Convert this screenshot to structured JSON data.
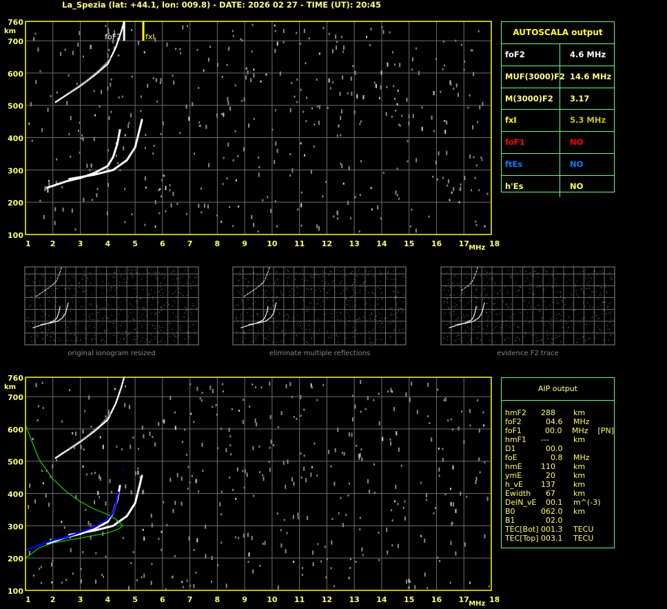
{
  "title": "La_Spezia (lat: +44.1, lon: 009.8) - DATE: 2026 02 27 - TIME (UT): 20:45",
  "colors": {
    "axis": "#ffff00",
    "label": "#ffff66",
    "grid": "#6e6e6e",
    "trace": "#ffffff",
    "noise": "#8a8a8a",
    "profile": "#00dd00",
    "aip_trace": "#0000ff",
    "table_border": "#66ff88"
  },
  "chart_data": [
    {
      "type": "scatter",
      "panel": "autoscala ionogram",
      "xlabel": "MHz",
      "ylabel": "km",
      "xlim": [
        1,
        18
      ],
      "ylim": [
        100,
        760
      ],
      "xticks": [
        1,
        2,
        3,
        4,
        5,
        6,
        7,
        8,
        9,
        10,
        11,
        12,
        13,
        14,
        15,
        16,
        17,
        18
      ],
      "yticks": [
        100,
        200,
        300,
        400,
        500,
        600,
        700,
        760
      ],
      "grid": true,
      "markers": [
        {
          "label": "foF2",
          "x": 4.6,
          "color": "#ffffff"
        },
        {
          "label": "fxI",
          "x": 5.3,
          "color": "#ffff00"
        }
      ],
      "traces": {
        "o_trace": [
          [
            1.8,
            245
          ],
          [
            2.5,
            265
          ],
          [
            3,
            275
          ],
          [
            3.5,
            290
          ],
          [
            4,
            312
          ],
          [
            4.2,
            340
          ],
          [
            4.35,
            380
          ],
          [
            4.45,
            425
          ]
        ],
        "x_trace": [
          [
            2.6,
            272
          ],
          [
            3.5,
            285
          ],
          [
            4.2,
            300
          ],
          [
            4.7,
            330
          ],
          [
            5,
            370
          ],
          [
            5.15,
            420
          ],
          [
            5.25,
            455
          ]
        ],
        "second_hop": [
          [
            2.1,
            510
          ],
          [
            3,
            560
          ],
          [
            3.5,
            592
          ],
          [
            4,
            628
          ],
          [
            4.3,
            680
          ],
          [
            4.5,
            730
          ],
          [
            4.6,
            760
          ]
        ],
        "second_hop_faint": [
          [
            2.6,
            540
          ],
          [
            3.2,
            575
          ],
          [
            3.7,
            610
          ],
          [
            4.1,
            645
          ]
        ]
      }
    },
    {
      "type": "line",
      "panel": "AIP ionogram",
      "xlabel": "MHz",
      "ylabel": "km",
      "xlim": [
        1,
        18
      ],
      "ylim": [
        100,
        760
      ],
      "xticks": [
        1,
        2,
        3,
        4,
        5,
        6,
        7,
        8,
        9,
        10,
        11,
        12,
        13,
        14,
        15,
        16,
        17,
        18
      ],
      "yticks": [
        100,
        200,
        300,
        400,
        500,
        600,
        700,
        760
      ],
      "grid": true,
      "profile": [
        [
          1,
          612
        ],
        [
          1.5,
          505
        ],
        [
          2,
          445
        ],
        [
          2.5,
          405
        ],
        [
          3,
          375
        ],
        [
          3.5,
          352
        ],
        [
          4,
          335
        ],
        [
          4.3,
          320
        ],
        [
          4.55,
          300
        ],
        [
          4.4,
          290
        ],
        [
          4,
          278
        ],
        [
          3,
          262
        ],
        [
          2,
          247
        ],
        [
          1.5,
          232
        ],
        [
          1,
          200
        ]
      ],
      "aip_trace": [
        [
          1,
          225
        ],
        [
          1.5,
          240
        ],
        [
          2,
          255
        ],
        [
          2.5,
          265
        ],
        [
          3,
          280
        ],
        [
          3.5,
          295
        ],
        [
          4,
          320
        ],
        [
          4.2,
          340
        ],
        [
          4.3,
          365
        ],
        [
          4.35,
          390
        ],
        [
          4.4,
          405
        ]
      ],
      "aip_point": [
        4.55,
        475
      ]
    }
  ],
  "thumbnails": [
    {
      "caption": "original ionogram resized"
    },
    {
      "caption": "eliminate multiple reflections"
    },
    {
      "caption": "evidence F2 trace"
    }
  ],
  "autoscala": {
    "title": "AUTOSCALA output",
    "rows": [
      {
        "key": "foF2",
        "value": "4.6 MHz",
        "kc": "#ffffff",
        "vc": "#ffffff"
      },
      {
        "key": "MUF(3000)F2",
        "value": "14.6 MHz",
        "kc": "#ffff80",
        "vc": "#ffff80"
      },
      {
        "key": "M(3000)F2",
        "value": "3.17",
        "kc": "#ffff80",
        "vc": "#ffff80"
      },
      {
        "key": "fxI",
        "value": "5.3 MHz",
        "kc": "#ffff00",
        "vc": "#c8c800"
      },
      {
        "key": "foF1",
        "value": "NO",
        "kc": "#ff0000",
        "vc": "#ff0000"
      },
      {
        "key": "ftEs",
        "value": "NO",
        "kc": "#0080ff",
        "vc": "#0080ff"
      },
      {
        "key": "h'Es",
        "value": "NO",
        "kc": "#ffff80",
        "vc": "#ffff66"
      }
    ]
  },
  "aip": {
    "title": "AIP output",
    "rows": [
      {
        "k": "hmF2",
        "v": "288",
        "u": "km"
      },
      {
        "k": "foF2",
        "v": "  04.6",
        "u": "MHz"
      },
      {
        "k": "foF1",
        "v": "  00.0",
        "u": "MHz    [PN]"
      },
      {
        "k": "hmF1",
        "v": "---",
        "u": "km"
      },
      {
        "k": "D1",
        "v": "  00.0",
        "u": ""
      },
      {
        "k": "foE",
        "v": "    0.8",
        "u": "MHz"
      },
      {
        "k": "hmE",
        "v": "110",
        "u": "km"
      },
      {
        "k": "ymE",
        "v": "  20",
        "u": "km"
      },
      {
        "k": "h_vE",
        "v": "137",
        "u": "km"
      },
      {
        "k": "Ewidth",
        "v": "  67",
        "u": "km"
      },
      {
        "k": "DelN_vE",
        "v": "  00.1",
        "u": "m^(-3)"
      },
      {
        "k": "B0",
        "v": "062.0",
        "u": "km"
      },
      {
        "k": "B1",
        "v": "  02.0",
        "u": ""
      },
      {
        "k": "TEC[Bot]",
        "v": "001.3",
        "u": "TECU"
      },
      {
        "k": "TEC[Top]",
        "v": "003.1",
        "u": "TECU"
      }
    ]
  }
}
